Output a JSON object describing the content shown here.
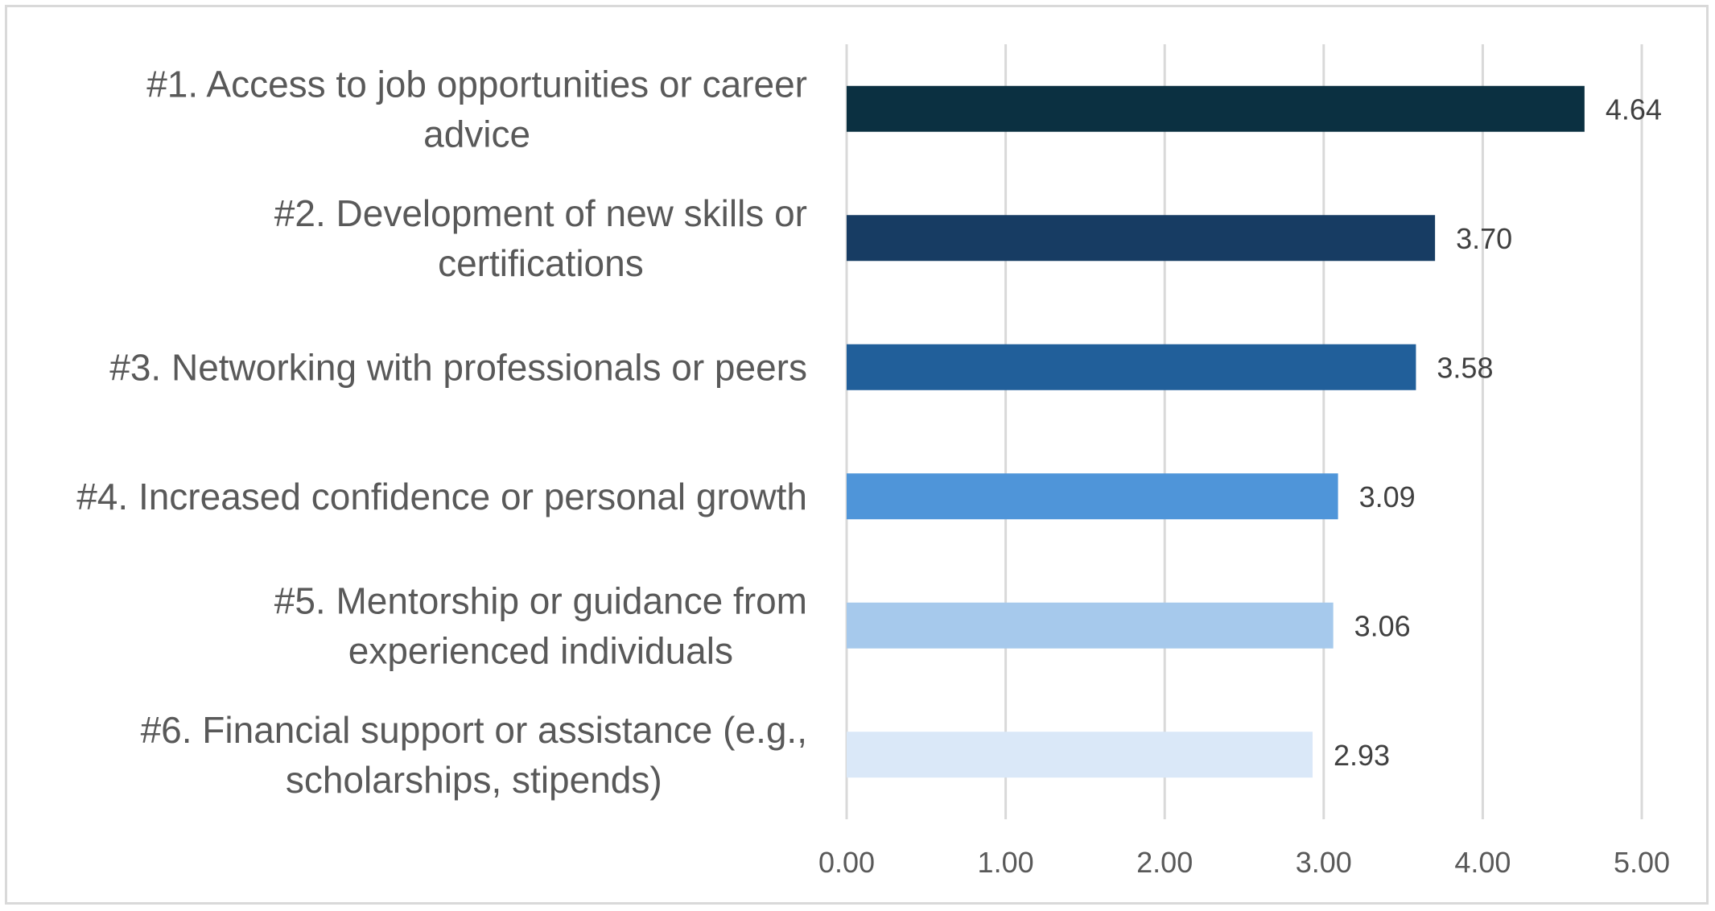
{
  "chart_data": {
    "type": "bar",
    "orientation": "horizontal",
    "categories": [
      [
        "#1. Access to job opportunities or career",
        "advice"
      ],
      [
        "#2. Development of new skills or",
        "certifications"
      ],
      [
        "#3. Networking with professionals or peers"
      ],
      [
        "#4. Increased confidence or personal growth"
      ],
      [
        "#5. Mentorship or guidance from",
        "experienced individuals"
      ],
      [
        "#6. Financial support or assistance (e.g.,",
        "scholarships, stipends)"
      ]
    ],
    "values": [
      4.64,
      3.7,
      3.58,
      3.09,
      3.06,
      2.93
    ],
    "value_labels": [
      "4.64",
      "3.70",
      "3.58",
      "3.09",
      "3.06",
      "2.93"
    ],
    "bar_colors": [
      "#0b3041",
      "#173c63",
      "#215f9a",
      "#4f95d9",
      "#a6c9ec",
      "#dae8f8"
    ],
    "xlim": [
      0,
      5
    ],
    "x_ticks": [
      "0.00",
      "1.00",
      "2.00",
      "3.00",
      "4.00",
      "5.00"
    ],
    "grid": "vertical",
    "title": "",
    "xlabel": "",
    "ylabel": ""
  }
}
